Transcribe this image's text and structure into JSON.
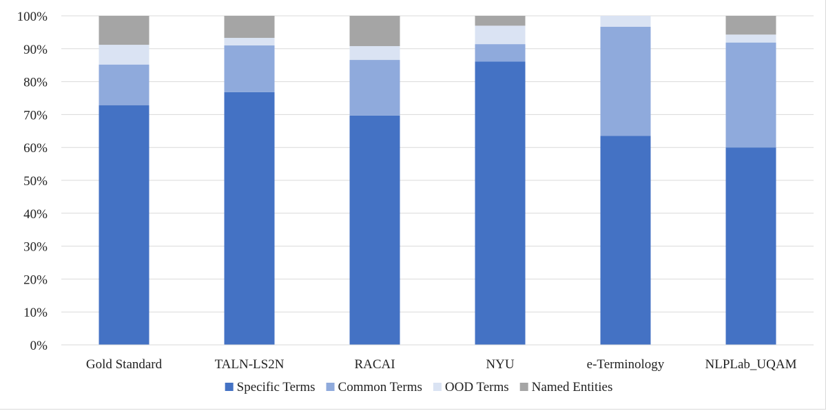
{
  "chart_data": {
    "type": "bar",
    "stacked": true,
    "percent_stacked": true,
    "title": "",
    "xlabel": "",
    "ylabel": "",
    "ylim": [
      0,
      100
    ],
    "y_ticks": [
      "0%",
      "10%",
      "20%",
      "30%",
      "40%",
      "50%",
      "60%",
      "70%",
      "80%",
      "90%",
      "100%"
    ],
    "grid": "horizontal",
    "legend_position": "bottom",
    "categories": [
      "Gold Standard",
      "TALN-LS2N",
      "RACAI",
      "NYU",
      "e-Terminology",
      "NLPLab_UQAM"
    ],
    "series": [
      {
        "name": "Specific Terms",
        "color": "#4472c4",
        "values": [
          72.8,
          76.8,
          69.7,
          86.1,
          63.5,
          60.0
        ]
      },
      {
        "name": "Common Terms",
        "color": "#8faadc",
        "values": [
          12.4,
          14.2,
          16.9,
          5.3,
          33.2,
          31.9
        ]
      },
      {
        "name": "OOD Terms",
        "color": "#dae3f3",
        "values": [
          6.0,
          2.3,
          4.2,
          5.6,
          3.3,
          2.4
        ]
      },
      {
        "name": "Named Entities",
        "color": "#a5a5a5",
        "values": [
          8.8,
          6.7,
          9.2,
          3.0,
          0.0,
          5.7
        ]
      }
    ]
  }
}
